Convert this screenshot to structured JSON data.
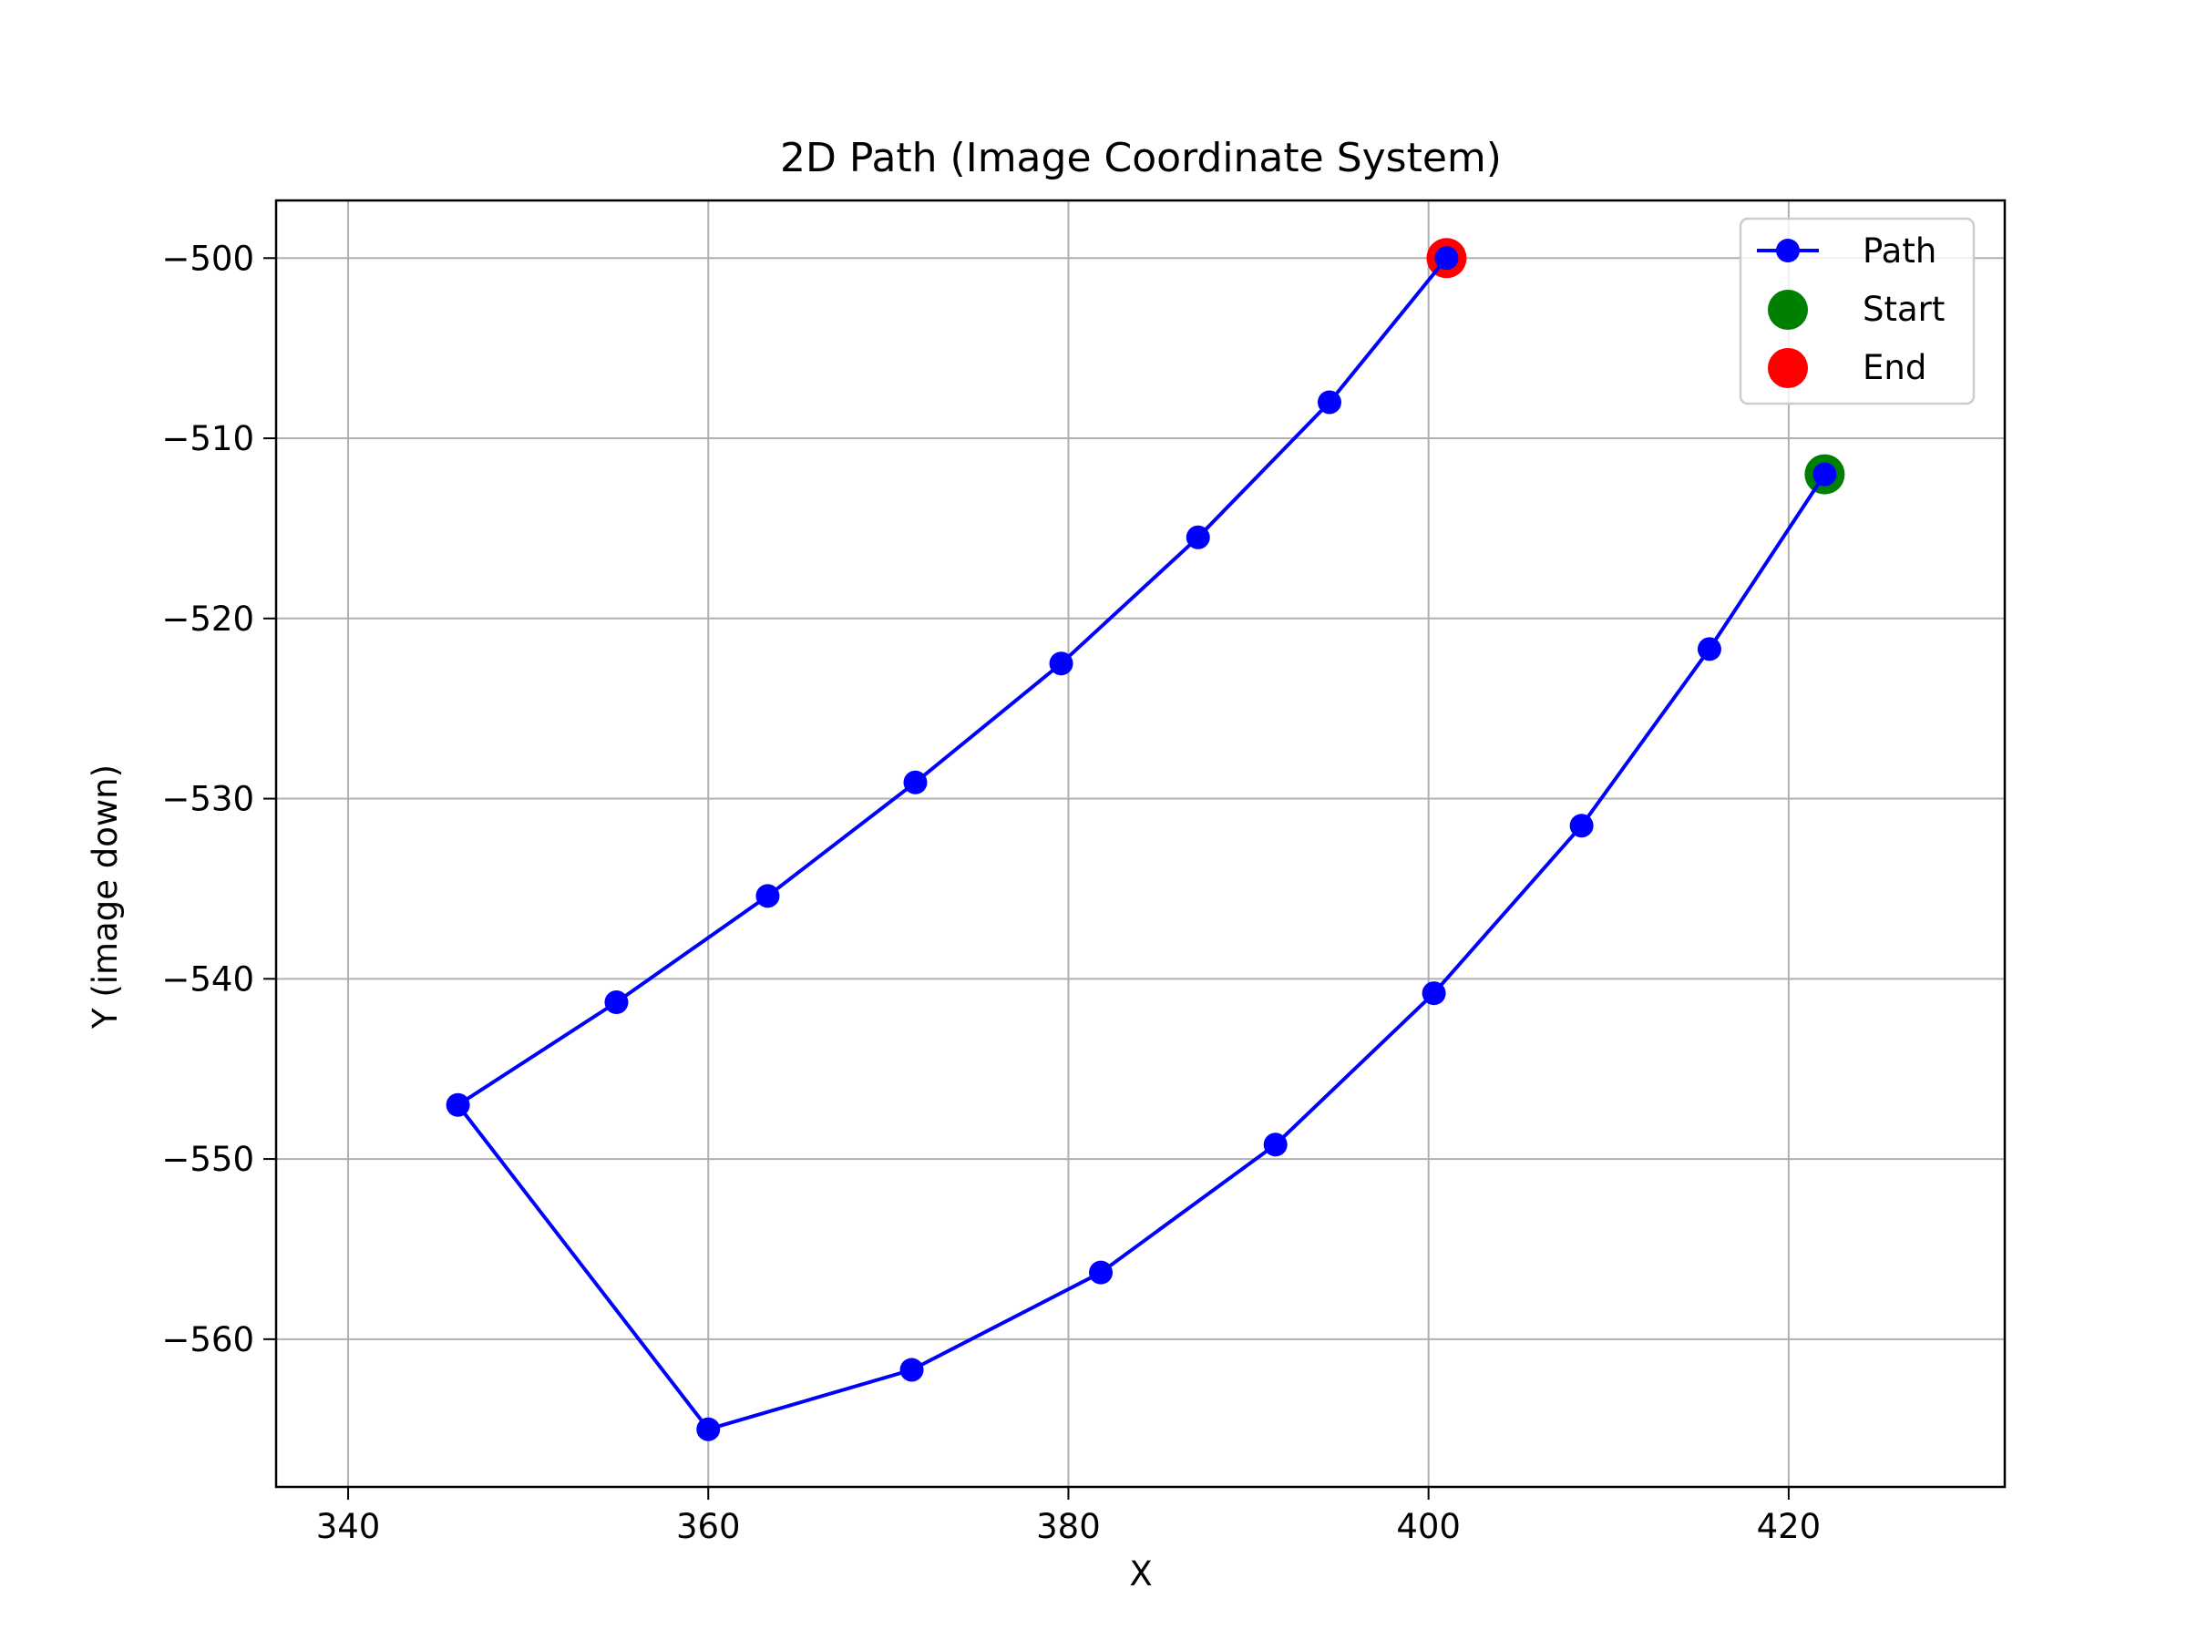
{
  "chart_data": {
    "type": "line",
    "title": "2D Path (Image Coordinate System)",
    "xlabel": "X",
    "ylabel": "Y (image down)",
    "xlim": [
      336,
      432
    ],
    "ylim": [
      -568.2,
      -496.8
    ],
    "xticks": [
      340,
      360,
      380,
      400,
      420
    ],
    "yticks": [
      -500,
      -510,
      -520,
      -530,
      -540,
      -550,
      -560
    ],
    "grid": true,
    "legend_position": "top-right",
    "series": [
      {
        "name": "Path",
        "color": "#0000ff",
        "marker": "circle",
        "points": [
          [
            422.0,
            -512.0
          ],
          [
            415.6,
            -521.7
          ],
          [
            408.5,
            -531.5
          ],
          [
            400.3,
            -540.8
          ],
          [
            391.5,
            -549.2
          ],
          [
            381.8,
            -556.3
          ],
          [
            371.3,
            -561.7
          ],
          [
            360.0,
            -565.0
          ],
          [
            346.1,
            -547.0
          ],
          [
            354.9,
            -541.3
          ],
          [
            363.3,
            -535.4
          ],
          [
            371.5,
            -529.1
          ],
          [
            379.6,
            -522.5
          ],
          [
            387.2,
            -515.5
          ],
          [
            394.5,
            -508.0
          ],
          [
            401.0,
            -500.0
          ]
        ]
      },
      {
        "name": "Start",
        "color": "#008000",
        "marker": "circle",
        "points": [
          [
            422.0,
            -512.0
          ]
        ]
      },
      {
        "name": "End",
        "color": "#ff0000",
        "marker": "circle",
        "points": [
          [
            401.0,
            -500.0
          ]
        ]
      }
    ]
  }
}
